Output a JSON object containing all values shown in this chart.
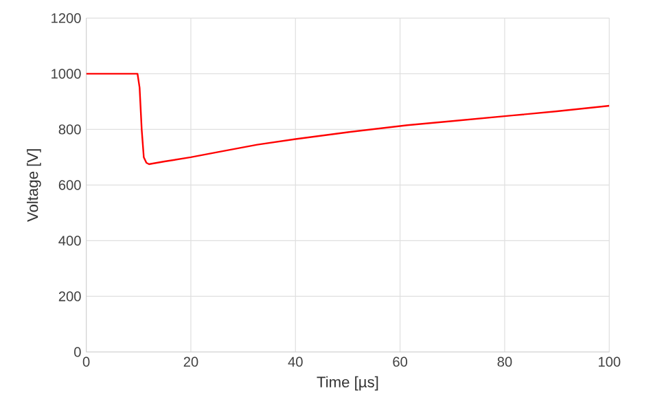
{
  "chart_data": {
    "type": "line",
    "xlabel": "Time [µs]",
    "ylabel": "Voltage [V]",
    "x": [
      0,
      5,
      9.8,
      10.2,
      10.6,
      11.0,
      11.5,
      12,
      15,
      20,
      25,
      32.7,
      40,
      50,
      61.4,
      70,
      81.4,
      90,
      100
    ],
    "series": [
      {
        "color": "#ff0000",
        "values": [
          1000,
          1000,
          1000,
          950,
          800,
          700,
          680,
          675,
          685,
          700,
          718,
          745,
          765,
          790,
          815,
          830,
          850,
          865,
          885
        ]
      }
    ],
    "xlim": [
      0,
      100
    ],
    "ylim": [
      0,
      1200
    ],
    "xticks": [
      0,
      20,
      40,
      60,
      80,
      100
    ],
    "yticks": [
      0,
      200,
      400,
      600,
      800,
      1000,
      1200
    ],
    "grid": true,
    "marker": "none",
    "line_style": "solid"
  }
}
